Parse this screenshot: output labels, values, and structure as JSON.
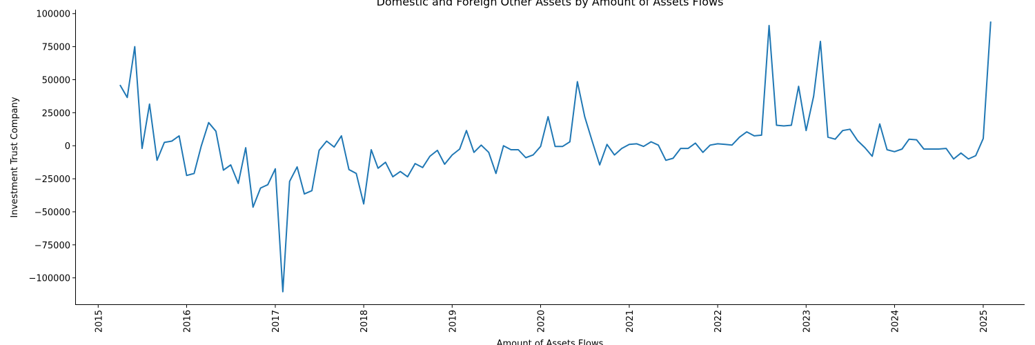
{
  "chart_data": {
    "type": "line",
    "title": "Domestic and Foreign Other Assets by Amount of Assets Flows",
    "xlabel": "Amount of Assets Flows",
    "ylabel": "Investment Trust Company",
    "xlim": [
      "2014-10-01",
      "2025-06-21"
    ],
    "ylim": [
      -120000,
      103000
    ],
    "x_ticks": [
      "2015",
      "2016",
      "2017",
      "2018",
      "2019",
      "2020",
      "2021",
      "2022",
      "2023",
      "2024",
      "2025"
    ],
    "y_ticks": [
      -100000,
      -75000,
      -50000,
      -25000,
      0,
      25000,
      50000,
      75000,
      100000
    ],
    "grid": false,
    "legend": "none",
    "line_color": "#1f77b4",
    "series": [
      {
        "x": [
          "2015-04",
          "2015-05",
          "2015-06",
          "2015-07",
          "2015-08",
          "2015-09",
          "2015-10",
          "2015-11",
          "2015-12",
          "2016-01",
          "2016-02",
          "2016-03",
          "2016-04",
          "2016-05",
          "2016-06",
          "2016-07",
          "2016-08",
          "2016-09",
          "2016-10",
          "2016-11",
          "2016-12",
          "2017-01",
          "2017-02",
          "2017-03",
          "2017-04",
          "2017-05",
          "2017-06",
          "2017-07",
          "2017-08",
          "2017-09",
          "2017-10",
          "2017-11",
          "2017-12",
          "2018-01",
          "2018-02",
          "2018-03",
          "2018-04",
          "2018-05",
          "2018-06",
          "2018-07",
          "2018-08",
          "2018-09",
          "2018-10",
          "2018-11",
          "2018-12",
          "2019-01",
          "2019-02",
          "2019-03",
          "2019-04",
          "2019-05",
          "2019-06",
          "2019-07",
          "2019-08",
          "2019-09",
          "2019-10",
          "2019-11",
          "2019-12",
          "2020-01",
          "2020-02",
          "2020-03",
          "2020-04",
          "2020-05",
          "2020-06",
          "2020-07",
          "2020-08",
          "2020-09",
          "2020-10",
          "2020-11",
          "2020-12",
          "2021-01",
          "2021-02",
          "2021-03",
          "2021-04",
          "2021-05",
          "2021-06",
          "2021-07",
          "2021-08",
          "2021-09",
          "2021-10",
          "2021-11",
          "2021-12",
          "2022-01",
          "2022-02",
          "2022-03",
          "2022-04",
          "2022-05",
          "2022-06",
          "2022-07",
          "2022-08",
          "2022-09",
          "2022-10",
          "2022-11",
          "2022-12",
          "2023-01",
          "2023-02",
          "2023-03",
          "2023-04",
          "2023-05",
          "2023-06",
          "2023-07",
          "2023-08",
          "2023-09",
          "2023-10",
          "2023-11",
          "2023-12",
          "2024-01",
          "2024-02",
          "2024-03",
          "2024-04",
          "2024-05",
          "2024-06",
          "2024-07",
          "2024-08",
          "2024-09",
          "2024-10",
          "2024-11",
          "2024-12",
          "2025-01",
          "2025-02"
        ],
        "values": [
          46000,
          36500,
          75000,
          -2000,
          31500,
          -11000,
          2500,
          3500,
          7500,
          -22500,
          -21000,
          -500,
          17500,
          11000,
          -18500,
          -14500,
          -28500,
          -1500,
          -46500,
          -32000,
          -29500,
          -17500,
          -110500,
          -27000,
          -16000,
          -36500,
          -34000,
          -3500,
          3500,
          -1000,
          7500,
          -18000,
          -21000,
          -44000,
          -3000,
          -17000,
          -12500,
          -23500,
          -19500,
          -23500,
          -13500,
          -16500,
          -8000,
          -3500,
          -14000,
          -7000,
          -2500,
          11500,
          -5000,
          500,
          -5000,
          -21000,
          0,
          -3000,
          -3000,
          -9000,
          -7000,
          -500,
          22000,
          -500,
          -500,
          3000,
          48500,
          22000,
          3500,
          -14500,
          1000,
          -7000,
          -2000,
          1000,
          1500,
          -500,
          3000,
          500,
          -11000,
          -9500,
          -2000,
          -2000,
          2000,
          -5000,
          500,
          1500,
          1000,
          500,
          6500,
          10500,
          7500,
          8000,
          91000,
          15500,
          15000,
          15500,
          45000,
          11500,
          37500,
          79000,
          6500,
          5000,
          11500,
          12500,
          4000,
          -1500,
          -8000,
          16500,
          -3000,
          -4500,
          -2500,
          5000,
          4500,
          -2500,
          -2500,
          -2500,
          -2000,
          -10000,
          -5500,
          -10000,
          -7500,
          5500,
          94000
        ]
      }
    ]
  }
}
